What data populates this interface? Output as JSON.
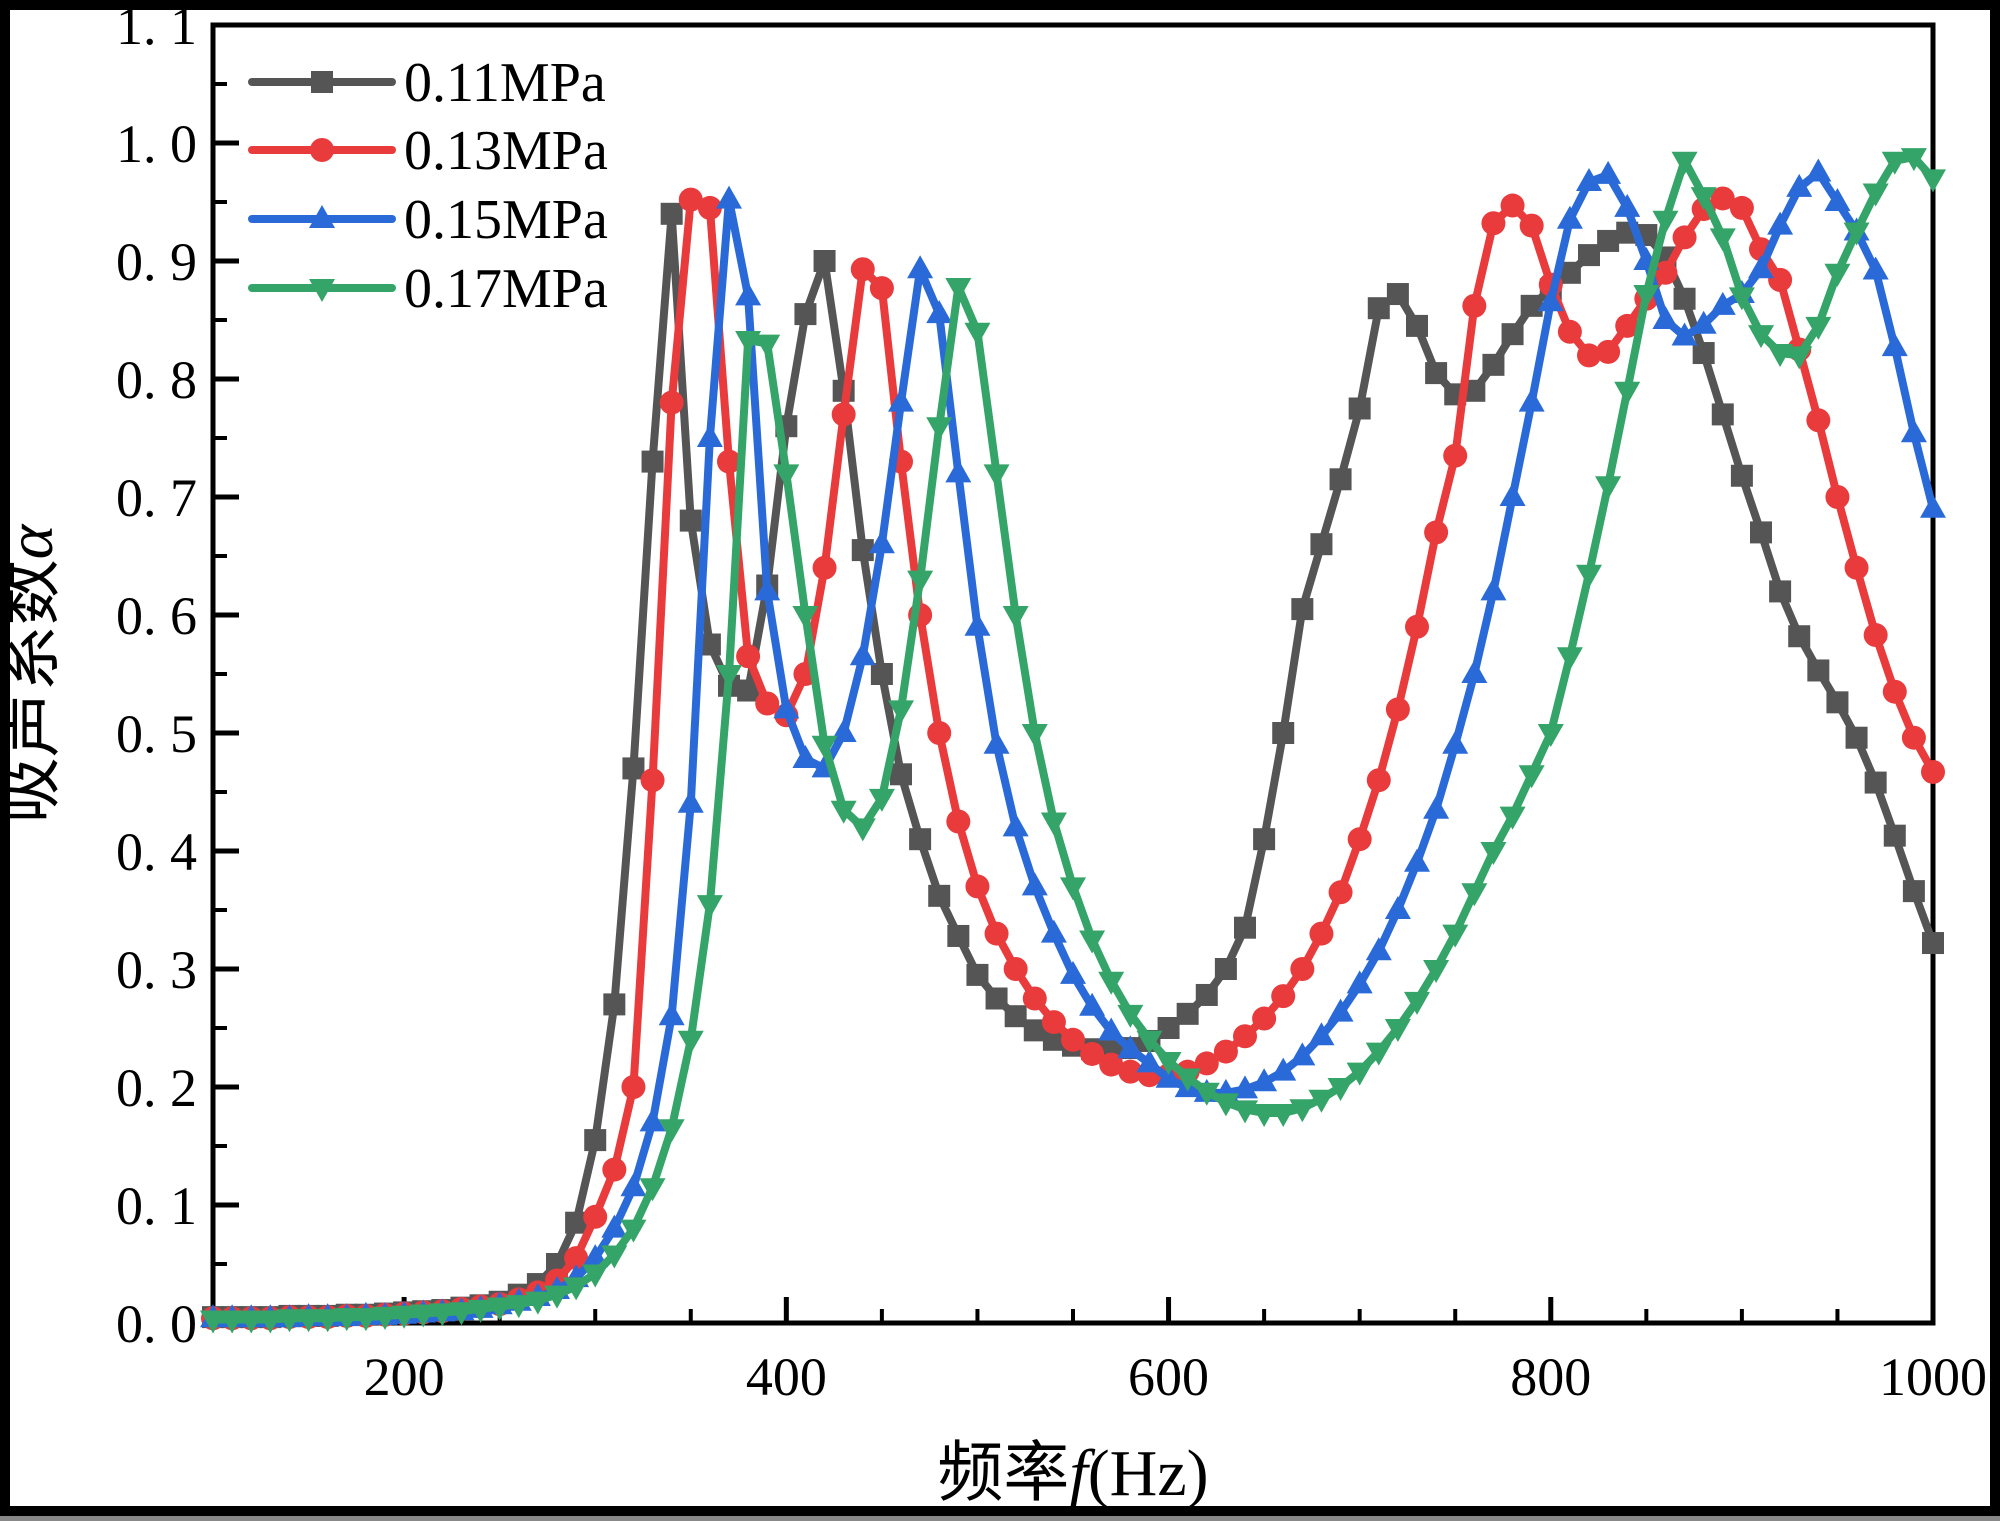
{
  "figure": {
    "background": "#ffffff",
    "border_color": "#000000",
    "border_width": 10
  },
  "chart_data": {
    "type": "line",
    "title": "",
    "xlabel": {
      "prefix": "频率",
      "italic": "f",
      "suffix": "(Hz)"
    },
    "ylabel": {
      "prefix": "吸声系数",
      "italic": "α"
    },
    "xlim": [
      100,
      1000
    ],
    "ylim": [
      0,
      1.1
    ],
    "grid": false,
    "legend_position": "top-left",
    "x_major_ticks": [
      200,
      400,
      600,
      800,
      1000
    ],
    "x_tick_labels": [
      "200",
      "400",
      "600",
      "800",
      "1000"
    ],
    "x_minor_step": 50,
    "y_major_ticks": [
      0.0,
      0.1,
      0.2,
      0.3,
      0.4,
      0.5,
      0.6,
      0.7,
      0.8,
      0.9,
      1.0,
      1.1
    ],
    "y_tick_labels": [
      "0. 0",
      "0. 1",
      "0. 2",
      "0. 3",
      "0. 4",
      "0. 5",
      "0. 6",
      "0. 7",
      "0. 8",
      "0. 9",
      "1. 0",
      "1. 1"
    ],
    "y_minor_step": 0.05,
    "x_start": 100,
    "x_step": 10,
    "axis_color": "#000000",
    "series": [
      {
        "name": "0.11MPa",
        "color": "#555555",
        "marker": "square",
        "values": [
          0.005,
          0.005,
          0.005,
          0.005,
          0.006,
          0.006,
          0.006,
          0.007,
          0.007,
          0.008,
          0.009,
          0.01,
          0.011,
          0.013,
          0.015,
          0.018,
          0.024,
          0.033,
          0.05,
          0.085,
          0.155,
          0.27,
          0.47,
          0.73,
          0.94,
          0.68,
          0.575,
          0.54,
          0.536,
          0.625,
          0.76,
          0.855,
          0.9,
          0.79,
          0.655,
          0.55,
          0.465,
          0.41,
          0.362,
          0.328,
          0.295,
          0.275,
          0.26,
          0.248,
          0.24,
          0.235,
          0.232,
          0.231,
          0.233,
          0.239,
          0.25,
          0.262,
          0.278,
          0.3,
          0.335,
          0.41,
          0.5,
          0.605,
          0.66,
          0.715,
          0.775,
          0.86,
          0.872,
          0.845,
          0.805,
          0.787,
          0.79,
          0.812,
          0.838,
          0.862,
          0.876,
          0.89,
          0.905,
          0.917,
          0.924,
          0.922,
          0.903,
          0.868,
          0.822,
          0.77,
          0.718,
          0.67,
          0.62,
          0.582,
          0.553,
          0.526,
          0.496,
          0.458,
          0.413,
          0.366,
          0.322
        ]
      },
      {
        "name": "0.13MPa",
        "color": "#e93a3c",
        "marker": "circle",
        "values": [
          0.004,
          0.004,
          0.004,
          0.004,
          0.005,
          0.005,
          0.005,
          0.006,
          0.006,
          0.007,
          0.008,
          0.009,
          0.01,
          0.012,
          0.014,
          0.016,
          0.02,
          0.026,
          0.036,
          0.055,
          0.09,
          0.13,
          0.2,
          0.46,
          0.78,
          0.952,
          0.945,
          0.73,
          0.565,
          0.525,
          0.515,
          0.55,
          0.64,
          0.77,
          0.893,
          0.877,
          0.73,
          0.6,
          0.5,
          0.425,
          0.37,
          0.33,
          0.3,
          0.275,
          0.255,
          0.24,
          0.228,
          0.219,
          0.213,
          0.21,
          0.21,
          0.213,
          0.22,
          0.23,
          0.243,
          0.258,
          0.277,
          0.3,
          0.33,
          0.365,
          0.41,
          0.46,
          0.52,
          0.59,
          0.67,
          0.735,
          0.862,
          0.932,
          0.947,
          0.93,
          0.88,
          0.84,
          0.82,
          0.823,
          0.845,
          0.868,
          0.89,
          0.92,
          0.944,
          0.953,
          0.945,
          0.91,
          0.884,
          0.825,
          0.765,
          0.7,
          0.64,
          0.583,
          0.535,
          0.496,
          0.467
        ]
      },
      {
        "name": "0.15MPa",
        "color": "#2a6ad8",
        "marker": "triangle-up",
        "values": [
          0.004,
          0.004,
          0.004,
          0.004,
          0.004,
          0.005,
          0.005,
          0.005,
          0.006,
          0.006,
          0.007,
          0.008,
          0.009,
          0.01,
          0.012,
          0.015,
          0.018,
          0.022,
          0.028,
          0.038,
          0.055,
          0.08,
          0.115,
          0.17,
          0.26,
          0.44,
          0.75,
          0.952,
          0.87,
          0.62,
          0.52,
          0.478,
          0.47,
          0.5,
          0.565,
          0.66,
          0.78,
          0.893,
          0.855,
          0.72,
          0.59,
          0.49,
          0.42,
          0.37,
          0.33,
          0.295,
          0.268,
          0.247,
          0.232,
          0.22,
          0.207,
          0.199,
          0.195,
          0.195,
          0.198,
          0.204,
          0.213,
          0.226,
          0.243,
          0.263,
          0.287,
          0.315,
          0.35,
          0.39,
          0.435,
          0.49,
          0.55,
          0.62,
          0.7,
          0.78,
          0.865,
          0.935,
          0.967,
          0.973,
          0.945,
          0.9,
          0.85,
          0.836,
          0.846,
          0.862,
          0.872,
          0.893,
          0.93,
          0.962,
          0.975,
          0.95,
          0.925,
          0.892,
          0.827,
          0.754,
          0.69
        ]
      },
      {
        "name": "0.17MPa",
        "color": "#34a469",
        "marker": "triangle-down",
        "values": [
          0.003,
          0.003,
          0.003,
          0.003,
          0.004,
          0.004,
          0.004,
          0.005,
          0.005,
          0.006,
          0.007,
          0.008,
          0.009,
          0.01,
          0.012,
          0.014,
          0.016,
          0.019,
          0.024,
          0.031,
          0.042,
          0.058,
          0.08,
          0.115,
          0.165,
          0.24,
          0.355,
          0.55,
          0.833,
          0.83,
          0.72,
          0.6,
          0.49,
          0.435,
          0.42,
          0.445,
          0.52,
          0.63,
          0.76,
          0.878,
          0.84,
          0.72,
          0.6,
          0.5,
          0.425,
          0.37,
          0.325,
          0.29,
          0.262,
          0.24,
          0.222,
          0.208,
          0.196,
          0.187,
          0.181,
          0.178,
          0.178,
          0.182,
          0.19,
          0.2,
          0.213,
          0.23,
          0.25,
          0.273,
          0.3,
          0.33,
          0.365,
          0.4,
          0.43,
          0.465,
          0.5,
          0.565,
          0.635,
          0.71,
          0.79,
          0.872,
          0.935,
          0.985,
          0.955,
          0.92,
          0.87,
          0.838,
          0.822,
          0.82,
          0.845,
          0.89,
          0.925,
          0.958,
          0.985,
          0.988,
          0.97
        ]
      }
    ],
    "legend": {
      "entries": [
        "0.11MPa",
        "0.13MPa",
        "0.15MPa",
        "0.17MPa"
      ]
    }
  }
}
